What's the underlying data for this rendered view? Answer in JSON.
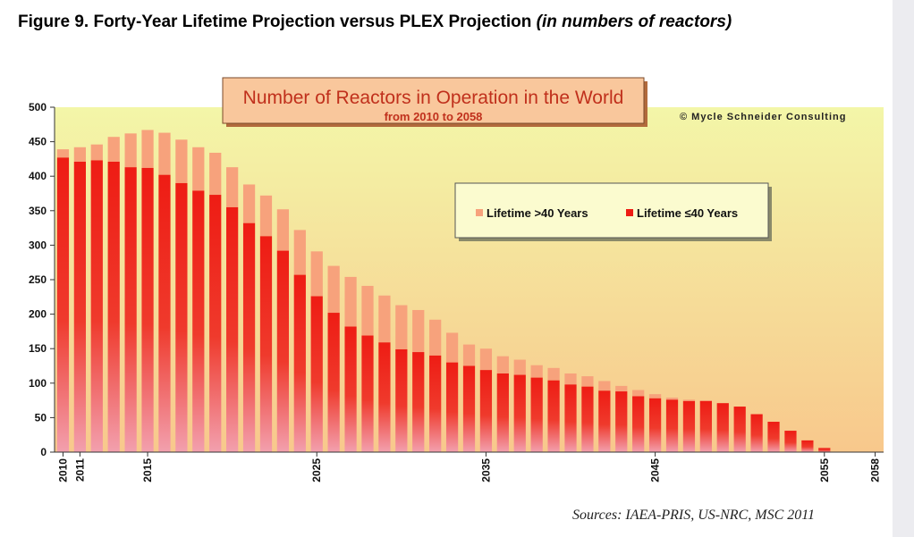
{
  "figure": {
    "heading": "Figure 9. Forty-Year Lifetime Projection versus PLEX Projection",
    "heading_unit": "(in numbers of reactors)",
    "sources": "Sources: IAEA-PRIS, US-NRC, MSC 2011"
  },
  "colors": {
    "plot_top": "#f3f6a8",
    "plot_bottom": "#f8c88c",
    "lifetime_over_40": "#f7a27c",
    "lifetime_under_40": "#ee1c14",
    "title_box": "#f9c79c",
    "title_text": "#c0301c",
    "legend_box": "#fbfbcf"
  },
  "chart_data": {
    "type": "bar",
    "stacked": true,
    "title": "Number of Reactors in Operation in the World",
    "subtitle": "from 2010 to 2058",
    "copyright": "© Mycle Schneider Consulting",
    "xlabel": "",
    "ylabel": "",
    "ylim": [
      0,
      500
    ],
    "yticks": [
      0,
      50,
      100,
      150,
      200,
      250,
      300,
      350,
      400,
      450,
      500
    ],
    "xtick_labels": [
      "2010",
      "2011",
      "2015",
      "2025",
      "2035",
      "2045",
      "2055",
      "2058"
    ],
    "grid": false,
    "legend": "inside-right",
    "categories": [
      2010,
      2011,
      2012,
      2013,
      2014,
      2015,
      2016,
      2017,
      2018,
      2019,
      2020,
      2021,
      2022,
      2023,
      2024,
      2025,
      2026,
      2027,
      2028,
      2029,
      2030,
      2031,
      2032,
      2033,
      2034,
      2035,
      2036,
      2037,
      2038,
      2039,
      2040,
      2041,
      2042,
      2043,
      2044,
      2045,
      2046,
      2047,
      2048,
      2049,
      2050,
      2051,
      2052,
      2053,
      2054,
      2055,
      2056,
      2057,
      2058
    ],
    "series": [
      {
        "name": "Lifetime ≤40 Years",
        "values": [
          427,
          421,
          423,
          421,
          413,
          412,
          402,
          390,
          379,
          373,
          355,
          332,
          313,
          292,
          257,
          226,
          202,
          182,
          169,
          159,
          149,
          145,
          140,
          130,
          125,
          119,
          114,
          112,
          108,
          104,
          98,
          95,
          89,
          88,
          81,
          78,
          76,
          74,
          74,
          71,
          66,
          55,
          44,
          31,
          17,
          6,
          0,
          0,
          0
        ]
      },
      {
        "name": "Lifetime >40 Years",
        "values": [
          12,
          21,
          23,
          36,
          49,
          55,
          61,
          63,
          63,
          61,
          58,
          56,
          59,
          60,
          65,
          65,
          68,
          72,
          72,
          68,
          64,
          61,
          52,
          43,
          31,
          31,
          25,
          22,
          18,
          18,
          16,
          15,
          14,
          8,
          9,
          6,
          3,
          2,
          1,
          0,
          0,
          0,
          0,
          0,
          0,
          0,
          0,
          0,
          0
        ]
      }
    ]
  }
}
